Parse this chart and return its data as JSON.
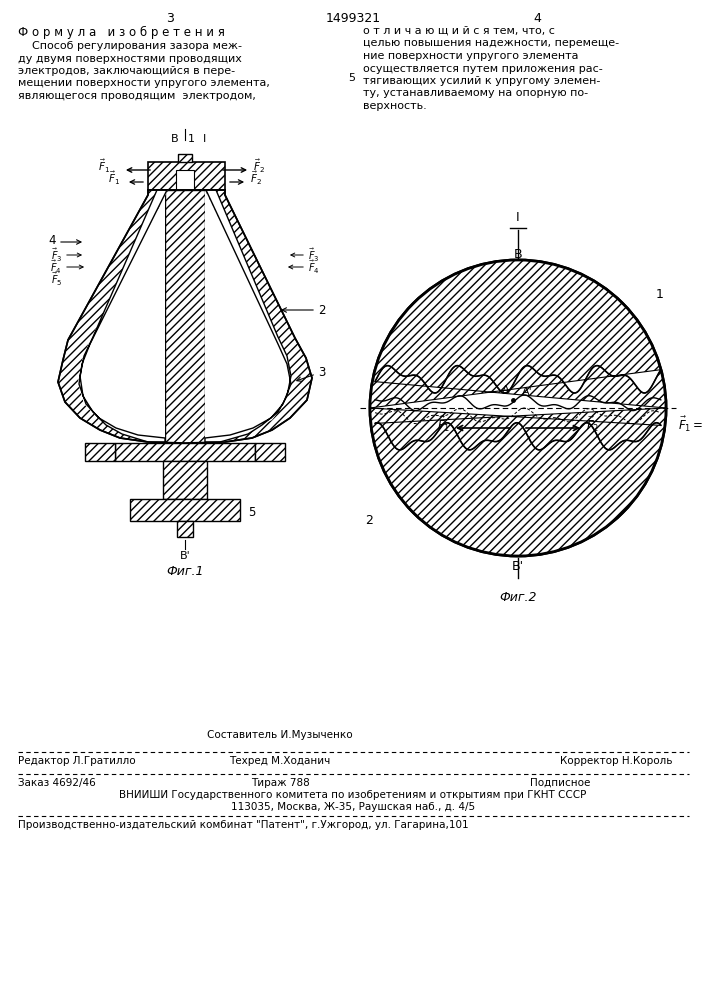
{
  "page_number_left": "3",
  "page_number_center": "1499321",
  "page_number_right": "4",
  "section_title": "Ф о р м у л а   и з о б р е т е н и я",
  "left_text_lines": [
    "    Способ регулирования зазора меж-",
    "ду двумя поверхностями проводящих",
    "электродов, заключающийся в пере-",
    "мещении поверхности упругого элемента,",
    "являющегося проводящим  электродом,"
  ],
  "right_text_lines": [
    "о т л и ч а ю щ и й с я тем, что, с",
    "целью повышения надежности, перемеще-",
    "ние поверхности упругого элемента",
    "осуществляется путем приложения рас-",
    "тягивающих усилий к упругому элемен-",
    "ту, устанавливаемому на опорную по-",
    "верхность."
  ],
  "fig1_label": "Фиг.1",
  "fig2_label": "Фиг.2",
  "bottom_editor": "Редактор Л.Гратилло",
  "bottom_compiler_label": "Составитель И.Музыченко",
  "bottom_techred": "Техред М.Ходанич",
  "bottom_corrector": "Корректор Н.Король",
  "bottom_order": "Заказ 4692/46",
  "bottom_tirazh": "Тираж 788",
  "bottom_podpisnoe": "Подписное",
  "bottom_vniishi": "ВНИИШИ Государственного комитета по изобретениям и открытиям при ГКНТ СССР",
  "bottom_address": "113035, Москва, Ж-35, Раушская наб., д. 4/5",
  "bottom_proizv": "Производственно-издательский комбинат \"Патент\", г.Ужгород, ул. Гагарина,101",
  "bg_color": "#ffffff",
  "text_color": "#000000"
}
